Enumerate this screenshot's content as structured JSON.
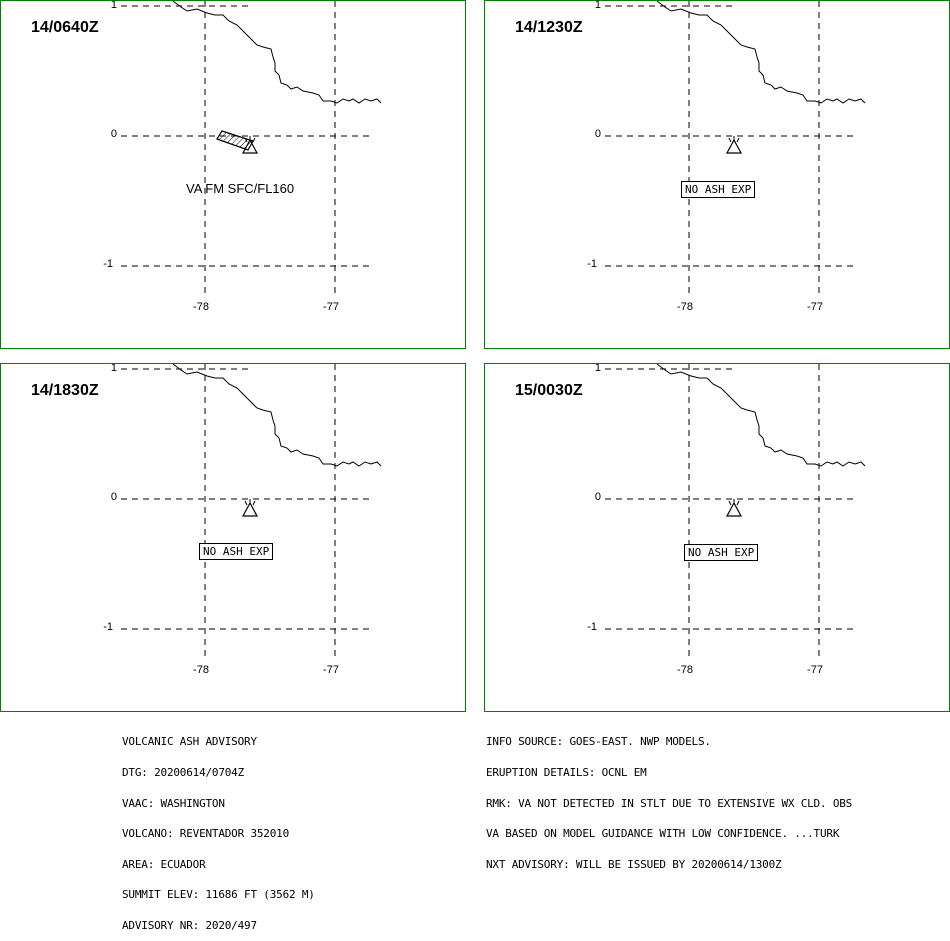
{
  "panels": [
    {
      "time": "14/0640Z",
      "label": "VA FM SFC/FL160",
      "label_style": "plain",
      "has_ash_polygon": true
    },
    {
      "time": "14/1230Z",
      "label": "NO ASH EXP",
      "label_style": "boxed",
      "has_ash_polygon": false
    },
    {
      "time": "14/1830Z",
      "label": "NO ASH EXP",
      "label_style": "boxed",
      "has_ash_polygon": false
    },
    {
      "time": "15/0030Z",
      "label": "NO ASH EXP",
      "label_style": "boxed",
      "has_ash_polygon": false
    }
  ],
  "axes": {
    "y_ticks": [
      "1",
      "0",
      "-1"
    ],
    "x_ticks": [
      "-78",
      "-77"
    ]
  },
  "colors": {
    "panel_border": "#008000",
    "lines": "#000000"
  },
  "footer": {
    "left": [
      "VOLCANIC ASH ADVISORY",
      "DTG: 20200614/0704Z",
      "VAAC: WASHINGTON",
      "VOLCANO: REVENTADOR 352010",
      "AREA: ECUADOR",
      "SUMMIT ELEV: 11686 FT (3562 M)",
      "ADVISORY NR: 2020/497"
    ],
    "right": [
      "INFO SOURCE: GOES-EAST. NWP MODELS.",
      "ERUPTION DETAILS: OCNL EM",
      "RMK: VA NOT DETECTED IN STLT DUE TO EXTENSIVE WX CLD. OBS",
      "VA BASED ON MODEL GUIDANCE WITH LOW CONFIDENCE. ...TURK",
      "NXT ADVISORY: WILL BE ISSUED BY 20200614/1300Z"
    ]
  }
}
